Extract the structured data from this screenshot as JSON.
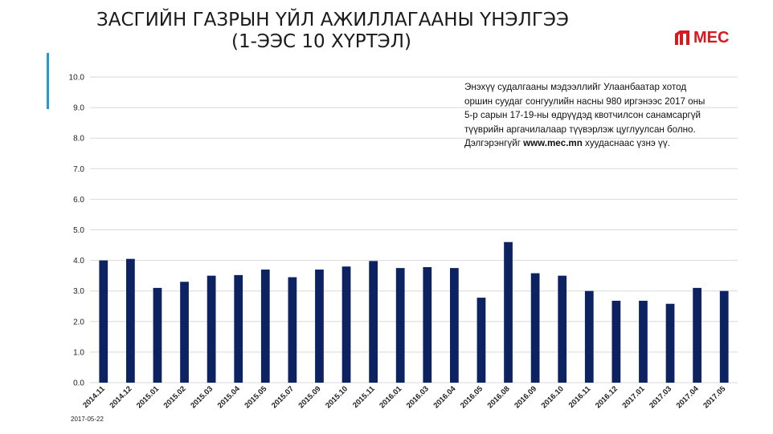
{
  "title": {
    "line1": "ЗАСГИЙН ГАЗРЫН ҮЙЛ АЖИЛЛАГААНЫ ҮНЭЛГЭЭ",
    "line2": "(1-ЭЭС 10 ХҮРТЭЛ)"
  },
  "logo": {
    "text": "MEC",
    "color": "#d71920",
    "icon": "mec-logo-icon"
  },
  "note": {
    "lines": [
      "Энэхүү судалгааны мэдээллийг Улаанбаатар хотод",
      "оршин суудаг сонгуулийн насны 980 иргэнээс 2017 оны",
      "5-р сарын 17-19-ны өдрүүдэд квотчилсон санамсаргүй",
      "түүврийн аргачилалаар түүвэрлэж цуглуулсан болно."
    ],
    "last_prefix": "Дэлгэрэнгүйг ",
    "last_site": "www.mec.mn",
    "last_suffix": " хуудаснаас үзнэ үү."
  },
  "date": "2017-05-22",
  "chart_data": {
    "type": "bar",
    "categories": [
      "2014.11",
      "2014.12",
      "2015.01",
      "2015.02",
      "2015.03",
      "2015.04",
      "2015.05",
      "2015.07",
      "2015.09",
      "2015.10",
      "2015.11",
      "2016.01",
      "2016.03",
      "2016.04",
      "2016.05",
      "2016.08",
      "2016.09",
      "2016.10",
      "2016.11",
      "2016.12",
      "2017.01",
      "2017.03",
      "2017.04",
      "2017.05"
    ],
    "values": [
      4.0,
      4.05,
      3.1,
      3.3,
      3.5,
      3.52,
      3.7,
      3.45,
      3.7,
      3.8,
      3.98,
      3.75,
      3.78,
      3.75,
      2.78,
      4.6,
      3.58,
      3.5,
      3.0,
      2.68,
      2.68,
      2.58,
      3.1,
      3.0
    ],
    "ylim": [
      0,
      10
    ],
    "yticks": [
      "0.0",
      "1.0",
      "2.0",
      "3.0",
      "4.0",
      "5.0",
      "6.0",
      "7.0",
      "8.0",
      "9.0",
      "10.0"
    ],
    "grid": true,
    "bar_color": "#0d2361",
    "grid_color": "#d9d9d9",
    "xlabel": "",
    "ylabel": ""
  }
}
